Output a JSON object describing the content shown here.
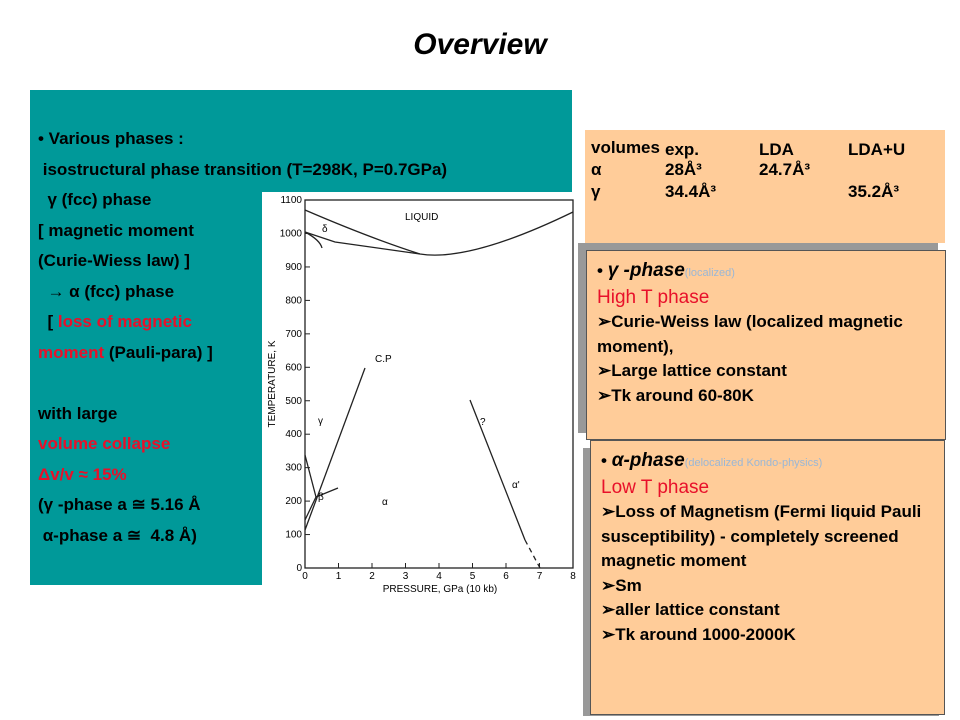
{
  "title": "Overview",
  "left_box": {
    "lines": [
      [
        "• Various phases :"
      ],
      [
        " isostructural phase transition (T=298K, P=0.7GPa)"
      ],
      [
        "  γ (fcc) phase"
      ],
      [
        "[ magnetic moment"
      ],
      [
        "(Curie-Wiess law) ]"
      ],
      [
        "  → α (fcc) phase"
      ],
      [
        "  [ ",
        {
          "text": "loss of magnetic",
          "color": "#e8102a"
        }
      ],
      [
        {
          "text": "moment",
          "color": "#e8102a"
        },
        " (Pauli-para) ]"
      ],
      [],
      [
        "with large"
      ],
      [
        {
          "text": "volume collapse",
          "color": "#e8102a"
        }
      ],
      [
        {
          "text": "Δv/v ≈ 15%",
          "color": "#e8102a"
        }
      ],
      [
        "(γ -phase a ≅ 5.16 Å"
      ],
      [
        " α-phase a ≅  4.8 Å)"
      ]
    ]
  },
  "volumes": {
    "header": [
      "volumes",
      "exp.",
      "LDA",
      "LDA+U"
    ],
    "rows": [
      [
        "α",
        "28Å³",
        "24.7Å³",
        null
      ],
      [
        "γ",
        "34.4Å³",
        null,
        "35.2Å³"
      ]
    ]
  },
  "gamma_box": {
    "heading": "γ -phase",
    "note": "(localized)",
    "subtitle": "High T phase",
    "bullets": [
      "Curie-Weiss law (localized magnetic moment),",
      "Large lattice constant",
      "Tk around 60-80K"
    ]
  },
  "alpha_box": {
    "heading": "α-phase",
    "note": "(delocalized Kondo-physics)",
    "subtitle": "Low T phase",
    "bullets": [
      "Loss of Magnetism (Fermi liquid Pauli susceptibility) - completely screened magnetic moment",
      "Sm",
      "aller lattice constant",
      "Tk around 1000-2000K"
    ]
  },
  "figure": {
    "y_label": "TEMPERATURE, K",
    "x_label": "PRESSURE, GPa (10 kb)",
    "yticks": [
      "0",
      "100",
      "200",
      "300",
      "400",
      "500",
      "600",
      "700",
      "800",
      "900",
      "1000",
      "1100"
    ],
    "xticks": [
      "0",
      "1",
      "2",
      "3",
      "4",
      "5",
      "6",
      "7",
      "8"
    ],
    "labels": [
      "LIQUID",
      "δ",
      "C.P",
      "γ",
      "β",
      "α",
      "?",
      "α'"
    ]
  }
}
